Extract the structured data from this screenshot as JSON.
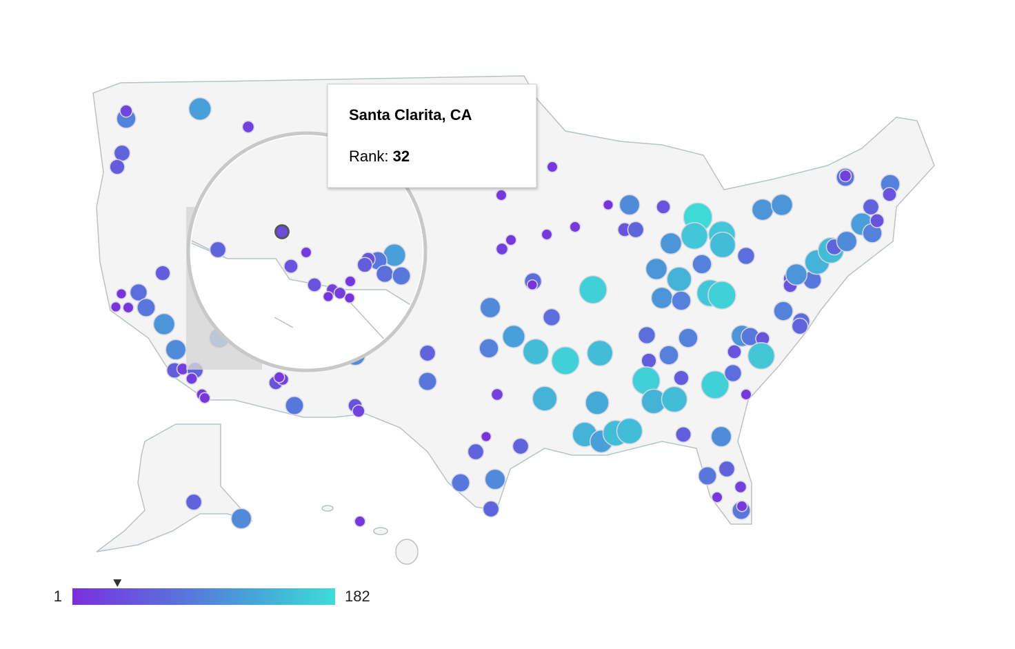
{
  "tooltip": {
    "title": "Santa Clarita, CA",
    "rank_label": "Rank:",
    "rank": 32
  },
  "legend": {
    "min": 1,
    "max": 182
  },
  "bubbles": [
    90,
    25,
    120,
    20,
    60,
    50,
    50,
    70,
    80,
    5,
    5,
    10,
    110,
    100,
    55,
    20,
    60,
    15,
    15,
    10,
    40,
    80,
    60,
    80,
    100,
    90,
    120,
    150,
    170,
    150,
    70,
    70,
    5,
    20,
    140,
    130,
    140,
    120,
    150,
    150,
    60,
    5,
    60,
    80,
    100,
    60,
    40,
    25,
    170,
    100,
    40,
    60,
    40,
    110,
    110,
    140,
    90,
    180,
    160,
    160,
    150,
    110,
    90,
    160,
    170,
    70,
    50,
    90,
    90,
    170,
    140,
    150,
    50,
    170,
    70,
    40,
    110,
    80,
    40,
    160,
    10,
    55,
    100,
    80,
    60,
    10,
    20,
    80,
    10,
    70,
    110,
    110,
    90,
    70,
    60,
    50,
    40,
    80,
    110,
    140,
    150,
    60,
    100,
    120,
    90,
    60,
    40,
    90,
    40,
    80,
    20,
    10,
    10,
    10,
    10,
    10,
    20,
    5,
    60,
    100,
    10,
    20,
    10,
    100,
    100
  ],
  "magnified_bubbles": [
    60,
    10,
    40,
    40,
    20,
    10,
    5,
    5,
    20,
    120,
    80,
    40,
    50,
    70,
    80
  ]
}
